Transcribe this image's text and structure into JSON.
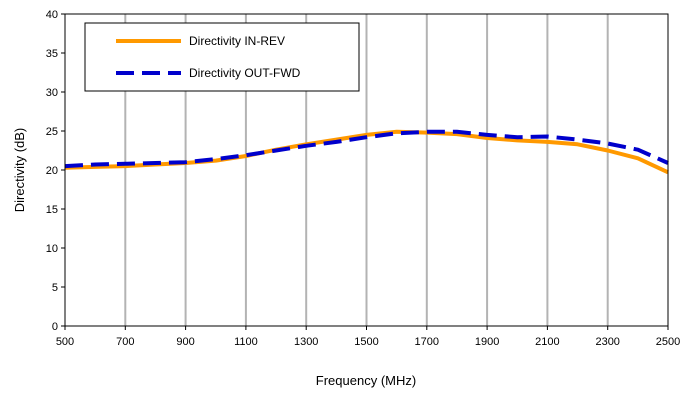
{
  "chart_data": {
    "type": "line",
    "title": "",
    "xlabel": "Frequency (MHz)",
    "ylabel": "Directivity (dB)",
    "xlim": [
      500,
      2500
    ],
    "ylim": [
      0,
      40
    ],
    "x_ticks": [
      500,
      700,
      900,
      1100,
      1300,
      1500,
      1700,
      1900,
      2100,
      2300,
      2500
    ],
    "y_ticks": [
      0,
      5,
      10,
      15,
      20,
      25,
      30,
      35,
      40
    ],
    "grid": "vertical",
    "legend_position": "top-left",
    "series": [
      {
        "name": "Directivity IN-REV",
        "color": "#FF9900",
        "style": "solid",
        "x": [
          500,
          600,
          700,
          800,
          900,
          1000,
          1100,
          1200,
          1300,
          1400,
          1500,
          1600,
          1700,
          1800,
          1900,
          2000,
          2100,
          2200,
          2300,
          2400,
          2500
        ],
        "y": [
          20.3,
          20.4,
          20.5,
          20.7,
          20.9,
          21.2,
          21.8,
          22.6,
          23.3,
          23.9,
          24.5,
          24.9,
          24.8,
          24.6,
          24.1,
          23.8,
          23.6,
          23.3,
          22.5,
          21.5,
          19.7
        ]
      },
      {
        "name": "Directivity OUT-FWD",
        "color": "#0000CC",
        "style": "dashed",
        "x": [
          500,
          600,
          700,
          800,
          900,
          1000,
          1100,
          1200,
          1300,
          1400,
          1500,
          1600,
          1700,
          1800,
          1900,
          2000,
          2100,
          2200,
          2300,
          2400,
          2500
        ],
        "y": [
          20.5,
          20.7,
          20.8,
          20.9,
          21.0,
          21.4,
          21.9,
          22.5,
          23.1,
          23.6,
          24.2,
          24.7,
          24.9,
          24.9,
          24.5,
          24.2,
          24.3,
          23.9,
          23.4,
          22.6,
          20.9
        ]
      }
    ]
  }
}
